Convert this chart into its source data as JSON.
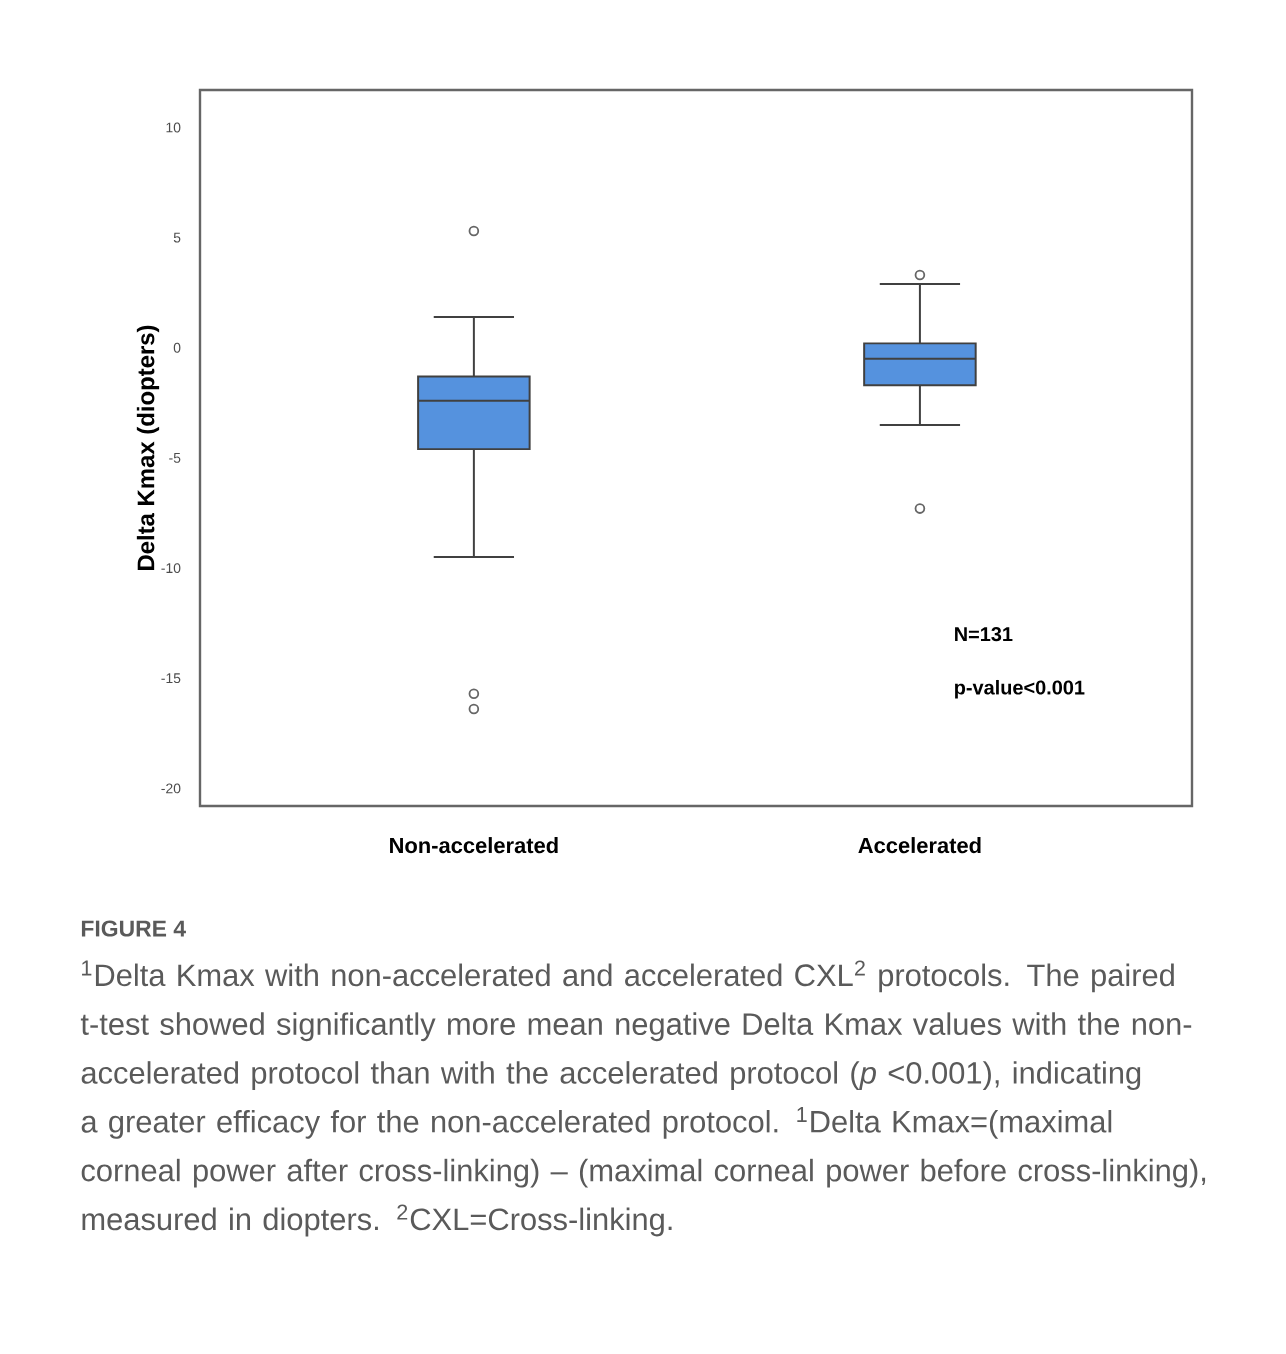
{
  "chart_data": {
    "type": "box",
    "ylabel": "Delta Kmax (diopters)",
    "categories": [
      "Non-accelerated",
      "Accelerated"
    ],
    "series": [
      {
        "color": "#5592de",
        "boxes": [
          {
            "low": -9.5,
            "q1": -4.6,
            "median": -2.4,
            "q3": -1.3,
            "high": 1.4,
            "outliers": [
              5.3,
              -15.7,
              -16.4
            ]
          },
          {
            "low": -3.5,
            "q1": -1.7,
            "median": -0.5,
            "q3": 0.2,
            "high": 2.9,
            "outliers": [
              3.3,
              -7.3
            ]
          }
        ]
      }
    ],
    "ylim": [
      -20.8,
      11.7
    ],
    "yticks": [
      -20,
      -15,
      -10,
      -5,
      0,
      5,
      10
    ],
    "annotations": [
      "N=131",
      "p-value<0.001",
      "FIGURE 4",
      "$^{1}$Delta Kmax with non-accelerated and accelerated CXL$^{2}$ protocols. The paired t-test showed significantly more mean negative Delta Kmax values with the non-accelerated protocol than with the accelerated protocol (*p* <0.001), indicating a greater efficacy for the non-accelerated protocol. $^{1}$Delta Kmax=(maximal corneal power after cross-linking) – (maximal corneal power before cross-linking), measured in diopters. $^{2}$CXL=Cross-linking."
    ]
  }
}
